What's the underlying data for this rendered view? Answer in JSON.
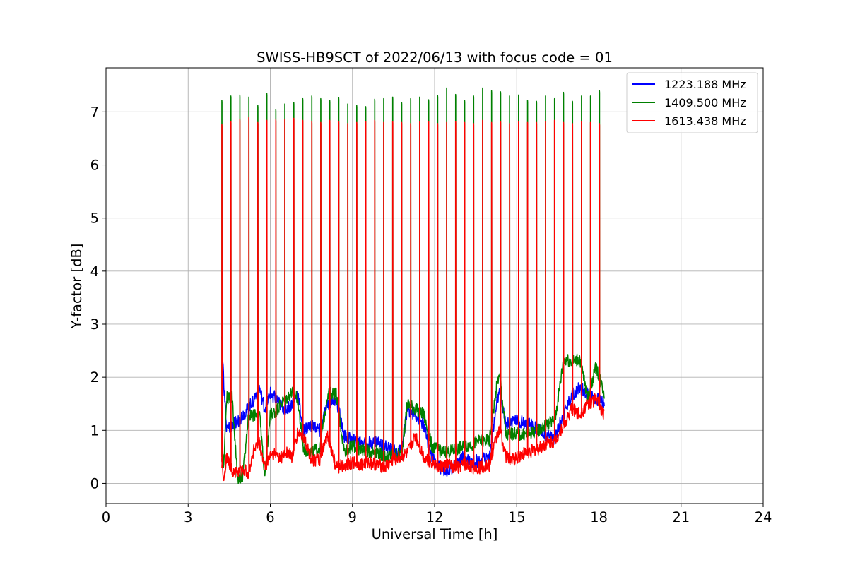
{
  "chart_data": {
    "type": "line",
    "title": "SWISS-HB9SCT of 2022/06/13 with focus code = 01",
    "xlabel": "Universal Time [h]",
    "ylabel": "Y-factor [dB]",
    "xlim": [
      0,
      24
    ],
    "ylim": [
      -0.38,
      7.83
    ],
    "x_ticks": [
      0,
      3,
      6,
      9,
      12,
      15,
      18,
      21,
      24
    ],
    "y_ticks": [
      0,
      1,
      2,
      3,
      4,
      5,
      6,
      7
    ],
    "grid": true,
    "legend_position": "top-right",
    "calibration_spikes": {
      "count": 43,
      "x_start": 4.23,
      "x_end": 18.02,
      "peak_values": {
        "1409.500 MHz": [
          7.22,
          7.3,
          7.32,
          7.28,
          7.12,
          7.35,
          7.05,
          7.15,
          7.18,
          7.25,
          7.3,
          7.25,
          7.22,
          7.27,
          7.15,
          7.12,
          7.1,
          7.24,
          7.25,
          7.28,
          7.18,
          7.25,
          7.28,
          7.23,
          7.31,
          7.45,
          7.33,
          7.22,
          7.3,
          7.45,
          7.4,
          7.38,
          7.3,
          7.32,
          7.22,
          7.2,
          7.3,
          7.25,
          7.37,
          7.2,
          7.3,
          7.3,
          7.4
        ],
        "1613.438 MHz": [
          6.76,
          6.82,
          6.86,
          6.9,
          6.8,
          6.84,
          6.85,
          6.86,
          6.88,
          6.84,
          6.82,
          6.8,
          6.84,
          6.82,
          6.78,
          6.8,
          6.82,
          6.84,
          6.8,
          6.82,
          6.8,
          6.78,
          6.82,
          6.82,
          6.78,
          6.8,
          6.82,
          6.8,
          6.78,
          6.84,
          6.8,
          6.82,
          6.78,
          6.82,
          6.8,
          6.8,
          6.82,
          6.84,
          6.8,
          6.78,
          6.82,
          6.8,
          6.78
        ]
      }
    },
    "series": [
      {
        "name": "1223.188 MHz",
        "color": "#0000ff",
        "x": [
          4.23,
          4.3,
          4.4,
          4.6,
          4.8,
          5.0,
          5.2,
          5.4,
          5.6,
          5.8,
          6.0,
          6.2,
          6.4,
          6.6,
          6.8,
          7.0,
          7.2,
          7.5,
          7.8,
          8.1,
          8.4,
          8.7,
          9.0,
          9.3,
          9.6,
          9.9,
          10.2,
          10.5,
          10.8,
          11.0,
          11.3,
          11.6,
          11.9,
          12.2,
          12.5,
          12.8,
          13.1,
          13.4,
          13.7,
          14.0,
          14.3,
          14.4,
          14.6,
          14.9,
          15.2,
          15.5,
          15.8,
          16.1,
          16.4,
          16.7,
          16.8,
          17.0,
          17.3,
          17.6,
          17.9,
          18.2
        ],
        "values": [
          2.8,
          1.9,
          1.0,
          1.1,
          1.15,
          1.3,
          1.4,
          1.6,
          1.8,
          1.4,
          1.7,
          1.6,
          1.45,
          1.4,
          1.5,
          1.7,
          1.0,
          1.1,
          1.0,
          1.5,
          1.6,
          0.9,
          0.8,
          0.8,
          0.75,
          0.8,
          0.7,
          0.6,
          0.6,
          1.4,
          1.3,
          1.1,
          0.5,
          0.3,
          0.2,
          0.4,
          0.5,
          0.4,
          0.45,
          0.5,
          1.6,
          1.7,
          1.1,
          1.2,
          1.15,
          1.1,
          1.0,
          0.9,
          0.85,
          1.3,
          1.4,
          1.65,
          1.8,
          1.7,
          1.6,
          1.5
        ]
      },
      {
        "name": "1409.500 MHz",
        "color": "#008000",
        "x": [
          4.23,
          4.3,
          4.4,
          4.6,
          4.8,
          5.0,
          5.2,
          5.4,
          5.6,
          5.8,
          6.0,
          6.2,
          6.4,
          6.6,
          6.8,
          7.0,
          7.2,
          7.5,
          7.8,
          8.1,
          8.4,
          8.7,
          9.0,
          9.3,
          9.6,
          9.9,
          10.2,
          10.5,
          10.8,
          11.0,
          11.3,
          11.6,
          11.9,
          12.2,
          12.5,
          12.8,
          13.1,
          13.4,
          13.7,
          14.0,
          14.3,
          14.4,
          14.6,
          14.9,
          15.2,
          15.5,
          15.8,
          16.1,
          16.4,
          16.7,
          16.8,
          17.0,
          17.3,
          17.6,
          17.9,
          18.2
        ],
        "values": [
          0.5,
          0.4,
          1.6,
          1.65,
          0.1,
          0.15,
          1.25,
          1.3,
          1.35,
          0.1,
          1.3,
          1.35,
          1.5,
          1.6,
          1.7,
          1.6,
          0.65,
          0.6,
          0.65,
          1.7,
          1.7,
          0.6,
          0.7,
          0.65,
          0.6,
          0.6,
          0.5,
          0.55,
          0.55,
          1.5,
          1.4,
          1.3,
          0.7,
          0.6,
          0.6,
          0.65,
          0.7,
          0.75,
          0.8,
          0.8,
          1.95,
          2.0,
          0.9,
          0.95,
          0.9,
          0.95,
          1.0,
          1.1,
          1.2,
          2.3,
          2.35,
          2.3,
          2.35,
          1.6,
          2.2,
          1.7
        ]
      },
      {
        "name": "1613.438 MHz",
        "color": "#ff0000",
        "x": [
          4.23,
          4.3,
          4.4,
          4.6,
          4.8,
          5.0,
          5.2,
          5.4,
          5.6,
          5.8,
          6.0,
          6.2,
          6.4,
          6.6,
          6.8,
          7.0,
          7.2,
          7.5,
          7.8,
          8.1,
          8.4,
          8.7,
          9.0,
          9.3,
          9.6,
          9.9,
          10.2,
          10.5,
          10.8,
          11.0,
          11.3,
          11.6,
          11.9,
          12.2,
          12.5,
          12.8,
          13.1,
          13.4,
          13.7,
          14.0,
          14.3,
          14.4,
          14.6,
          14.9,
          15.2,
          15.5,
          15.8,
          16.1,
          16.4,
          16.7,
          16.8,
          17.0,
          17.3,
          17.6,
          17.9,
          18.2
        ],
        "values": [
          0.4,
          0.1,
          0.5,
          0.25,
          0.2,
          0.25,
          0.2,
          0.65,
          0.75,
          0.3,
          0.55,
          0.55,
          0.5,
          0.6,
          0.5,
          0.95,
          0.9,
          0.45,
          0.45,
          0.9,
          0.3,
          0.35,
          0.4,
          0.35,
          0.4,
          0.35,
          0.3,
          0.45,
          0.5,
          0.55,
          0.9,
          0.5,
          0.4,
          0.3,
          0.35,
          0.3,
          0.35,
          0.3,
          0.3,
          0.35,
          0.95,
          1.0,
          0.5,
          0.45,
          0.55,
          0.6,
          0.65,
          0.75,
          0.8,
          1.1,
          1.15,
          1.4,
          1.3,
          1.5,
          1.6,
          1.3
        ]
      }
    ]
  }
}
